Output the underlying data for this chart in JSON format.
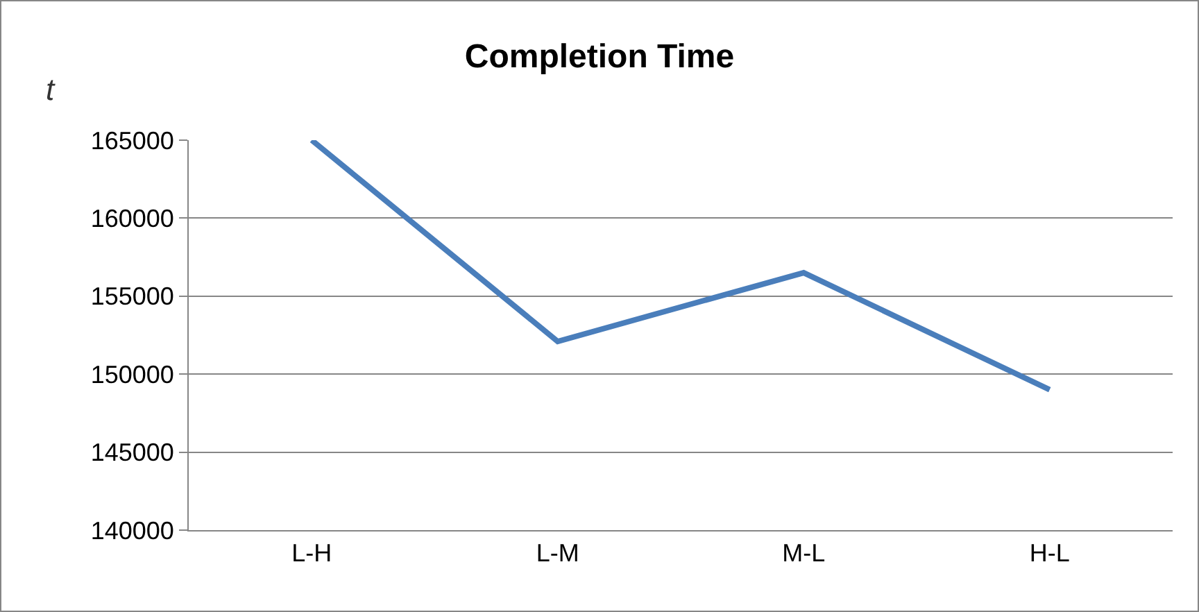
{
  "chart_data": {
    "type": "line",
    "title": "Completion Time",
    "ylabel": "t",
    "categories": [
      "L-H",
      "L-M",
      "M-L",
      "H-L"
    ],
    "series": [
      {
        "color": "#4a7ebb",
        "values": [
          165000,
          152100,
          156500,
          149000
        ]
      }
    ],
    "ylim": [
      140000,
      165000
    ],
    "yticks": [
      140000,
      145000,
      150000,
      155000,
      160000,
      165000
    ],
    "grid": "y",
    "marker": "none",
    "line_style": "solid"
  }
}
